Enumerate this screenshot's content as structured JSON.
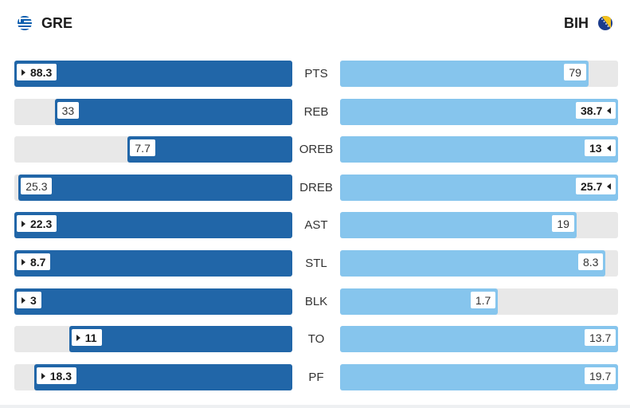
{
  "teams": {
    "left": {
      "code": "GRE",
      "flag_icon": "greece-flag-icon",
      "color": "#2166a8"
    },
    "right": {
      "code": "BIH",
      "flag_icon": "bosnia-flag-icon",
      "color": "#86c5ed"
    }
  },
  "chart_data": {
    "type": "bar",
    "categories": [
      "PTS",
      "REB",
      "OREB",
      "DREB",
      "AST",
      "STL",
      "BLK",
      "TO",
      "PF"
    ],
    "series": [
      {
        "name": "GRE",
        "values": [
          88.3,
          33,
          7.7,
          25.3,
          22.3,
          8.7,
          3,
          11,
          18.3
        ],
        "display": [
          "88.3",
          "33",
          "7.7",
          "25.3",
          "22.3",
          "8.7",
          "3",
          "11",
          "18.3"
        ]
      },
      {
        "name": "BIH",
        "values": [
          79,
          38.7,
          13,
          25.7,
          19,
          8.3,
          1.7,
          13.7,
          19.7
        ],
        "display": [
          "79",
          "38.7",
          "13",
          "25.7",
          "19",
          "8.3",
          "1.7",
          "13.7",
          "19.7"
        ]
      }
    ],
    "fill_fraction": {
      "GRE": [
        1.0,
        0.855,
        0.592,
        0.985,
        1.0,
        1.0,
        1.0,
        0.803,
        0.929
      ],
      "BIH": [
        0.895,
        1.0,
        1.0,
        1.0,
        0.852,
        0.954,
        0.567,
        1.0,
        1.0
      ]
    },
    "leader": [
      "GRE",
      "BIH",
      "BIH",
      "BIH",
      "GRE",
      "GRE",
      "GRE",
      "GRE",
      "GRE"
    ]
  }
}
